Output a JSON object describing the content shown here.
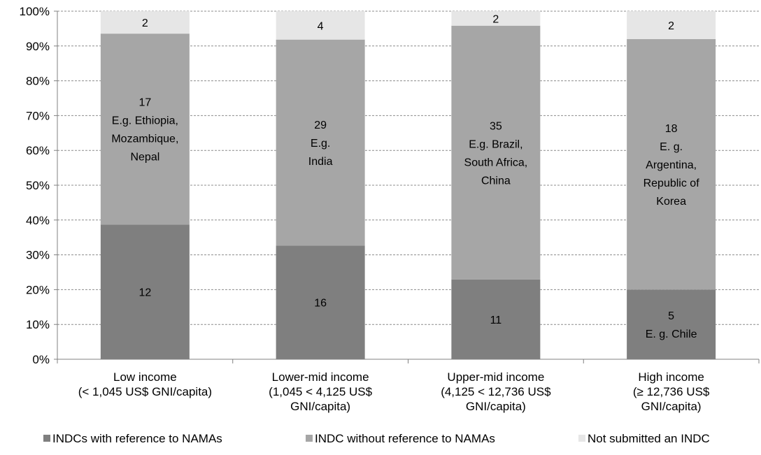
{
  "chart_data": {
    "type": "bar",
    "stacked": true,
    "percent": true,
    "categories": [
      [
        "Low income",
        "(< 1,045 US$ GNI/capita)"
      ],
      [
        "Lower-mid income",
        "(1,045 < 4,125 US$",
        "GNI/capita)"
      ],
      [
        "Upper-mid income",
        "(4,125 <  12,736 US$",
        "GNI/capita)"
      ],
      [
        "High income",
        "(≥ 12,736 US$",
        "GNI/capita)"
      ]
    ],
    "series": [
      {
        "name": "INDCs with reference to NAMAs",
        "values": [
          12,
          16,
          11,
          5
        ],
        "color": "#7f7f7f",
        "labels": [
          [
            "12"
          ],
          [
            "16"
          ],
          [
            "11"
          ],
          [
            "5",
            "E. g. Chile"
          ]
        ]
      },
      {
        "name": "INDC without reference to NAMAs",
        "values": [
          17,
          29,
          35,
          18
        ],
        "color": "#a6a6a6",
        "labels": [
          [
            "17",
            "E.g. Ethiopia,",
            "Mozambique,",
            "Nepal"
          ],
          [
            "29",
            "E.g.",
            "India"
          ],
          [
            "35",
            "E.g. Brazil,",
            "South Africa,",
            "China"
          ],
          [
            "18",
            "E. g.",
            "Argentina,",
            "Republic of",
            "Korea"
          ]
        ]
      },
      {
        "name": "Not submitted an INDC",
        "values": [
          2,
          4,
          2,
          2
        ],
        "color": "#e6e6e6",
        "labels": [
          [
            "2"
          ],
          [
            "4"
          ],
          [
            "2"
          ],
          [
            "2"
          ]
        ]
      }
    ],
    "yticks": [
      "0%",
      "10%",
      "20%",
      "30%",
      "40%",
      "50%",
      "60%",
      "70%",
      "80%",
      "90%",
      "100%"
    ],
    "ylim": [
      0,
      100
    ],
    "grid": true,
    "legend_position": "bottom",
    "title": "",
    "xlabel": "",
    "ylabel": ""
  }
}
